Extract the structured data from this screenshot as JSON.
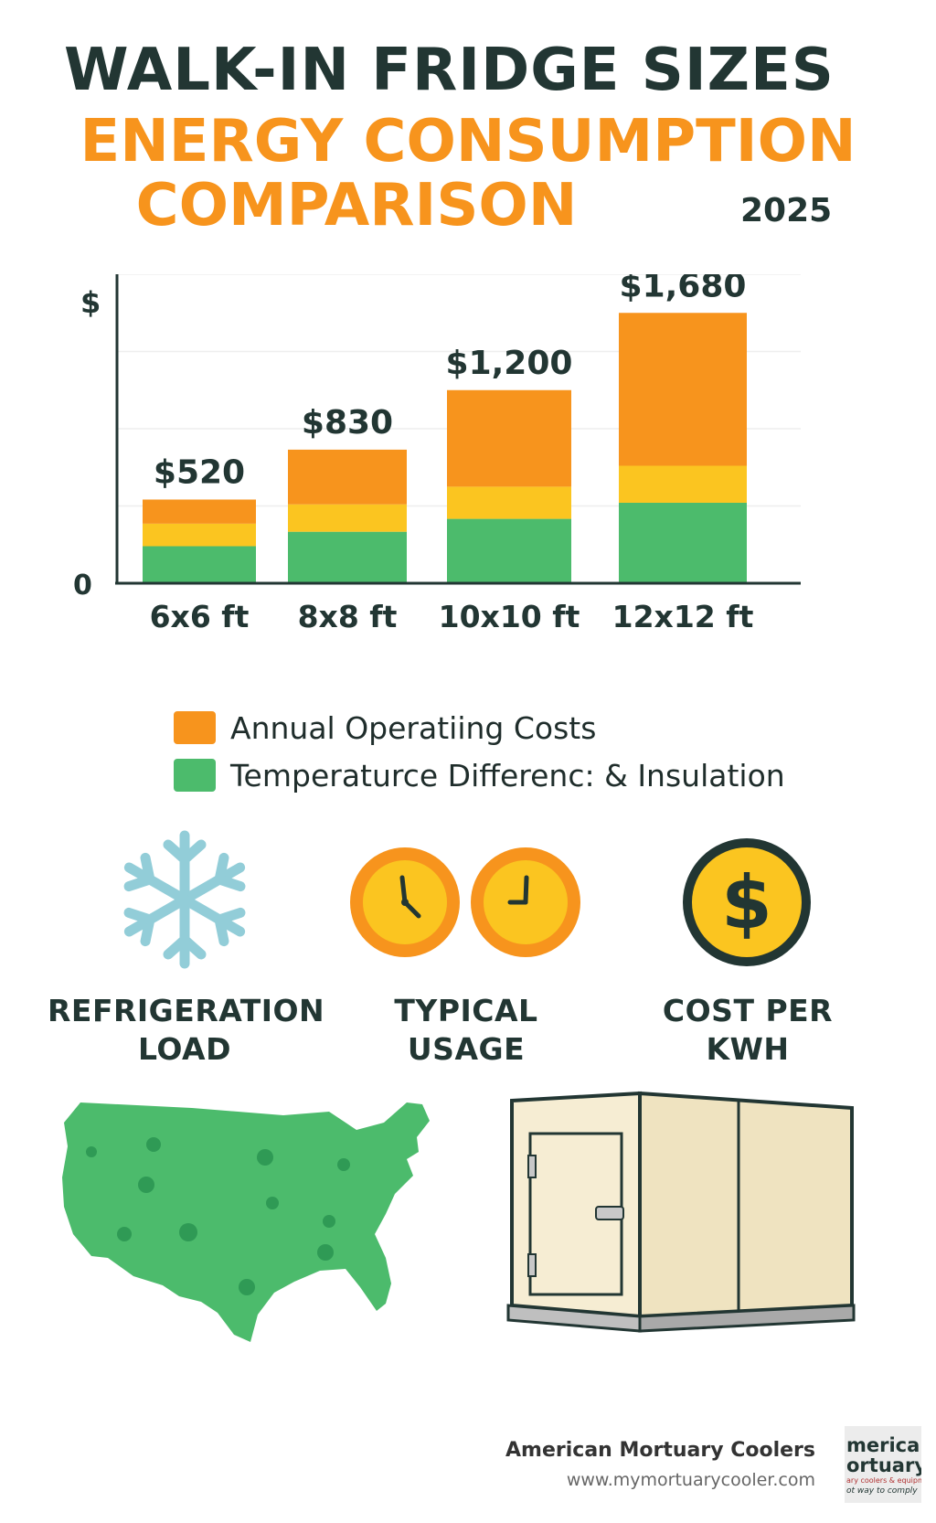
{
  "header": {
    "title_line1": "WALK-IN FRIDGE SIZES",
    "title_line2": "ENERGY CONSUMPTION",
    "title_line3": "COMPARISON",
    "year": "2025"
  },
  "chart_data": {
    "type": "bar",
    "stacked": true,
    "categories": [
      "6x6 ft",
      "8x8 ft",
      "10x10 ft",
      "12x12 ft"
    ],
    "totals": [
      520,
      830,
      1200,
      1680
    ],
    "total_labels": [
      "$520",
      "$830",
      "$1,200",
      "$1,680"
    ],
    "series": [
      {
        "values": [
          230,
          320,
          400,
          500
        ],
        "color": "#4cbb6c"
      },
      {
        "values": [
          140,
          170,
          200,
          230
        ],
        "color": "#fbc520"
      },
      {
        "values": [
          150,
          340,
          600,
          950
        ],
        "color": "#f7941d"
      }
    ],
    "ylabel": "$",
    "yzero_label": "0",
    "ylim": [
      0,
      1920
    ],
    "grid": true
  },
  "legend": [
    {
      "label": "Annual Operatiing Costs",
      "color": "#f7941d"
    },
    {
      "label": "Temperaturce Differenc: & Insulation",
      "color": "#4cbb6c"
    }
  ],
  "icons": [
    {
      "icon": "snowflake-icon",
      "label_line1": "REFRIGERATION",
      "label_line2": "LOAD",
      "color": "#92cdd8"
    },
    {
      "icon": "clock-icon",
      "label_line1": "TYPICAL",
      "label_line2": "USAGE",
      "color": "#f7941d"
    },
    {
      "icon": "dollar-coin-icon",
      "label_line1": "COST PER",
      "label_line2": "KWH",
      "color": "#fbc520"
    }
  ],
  "illustrations": {
    "map": "usa-map-icon",
    "cooler": "walk-in-cooler-icon"
  },
  "footer": {
    "company": "American Mortuary Coolers",
    "url": "www.mymortuarycooler.com",
    "logo_text_line1": "merican",
    "logo_text_line2": "ortuary",
    "logo_text_line3": "ary coolers & equipment",
    "logo_text_line4": "ot way to comply"
  }
}
